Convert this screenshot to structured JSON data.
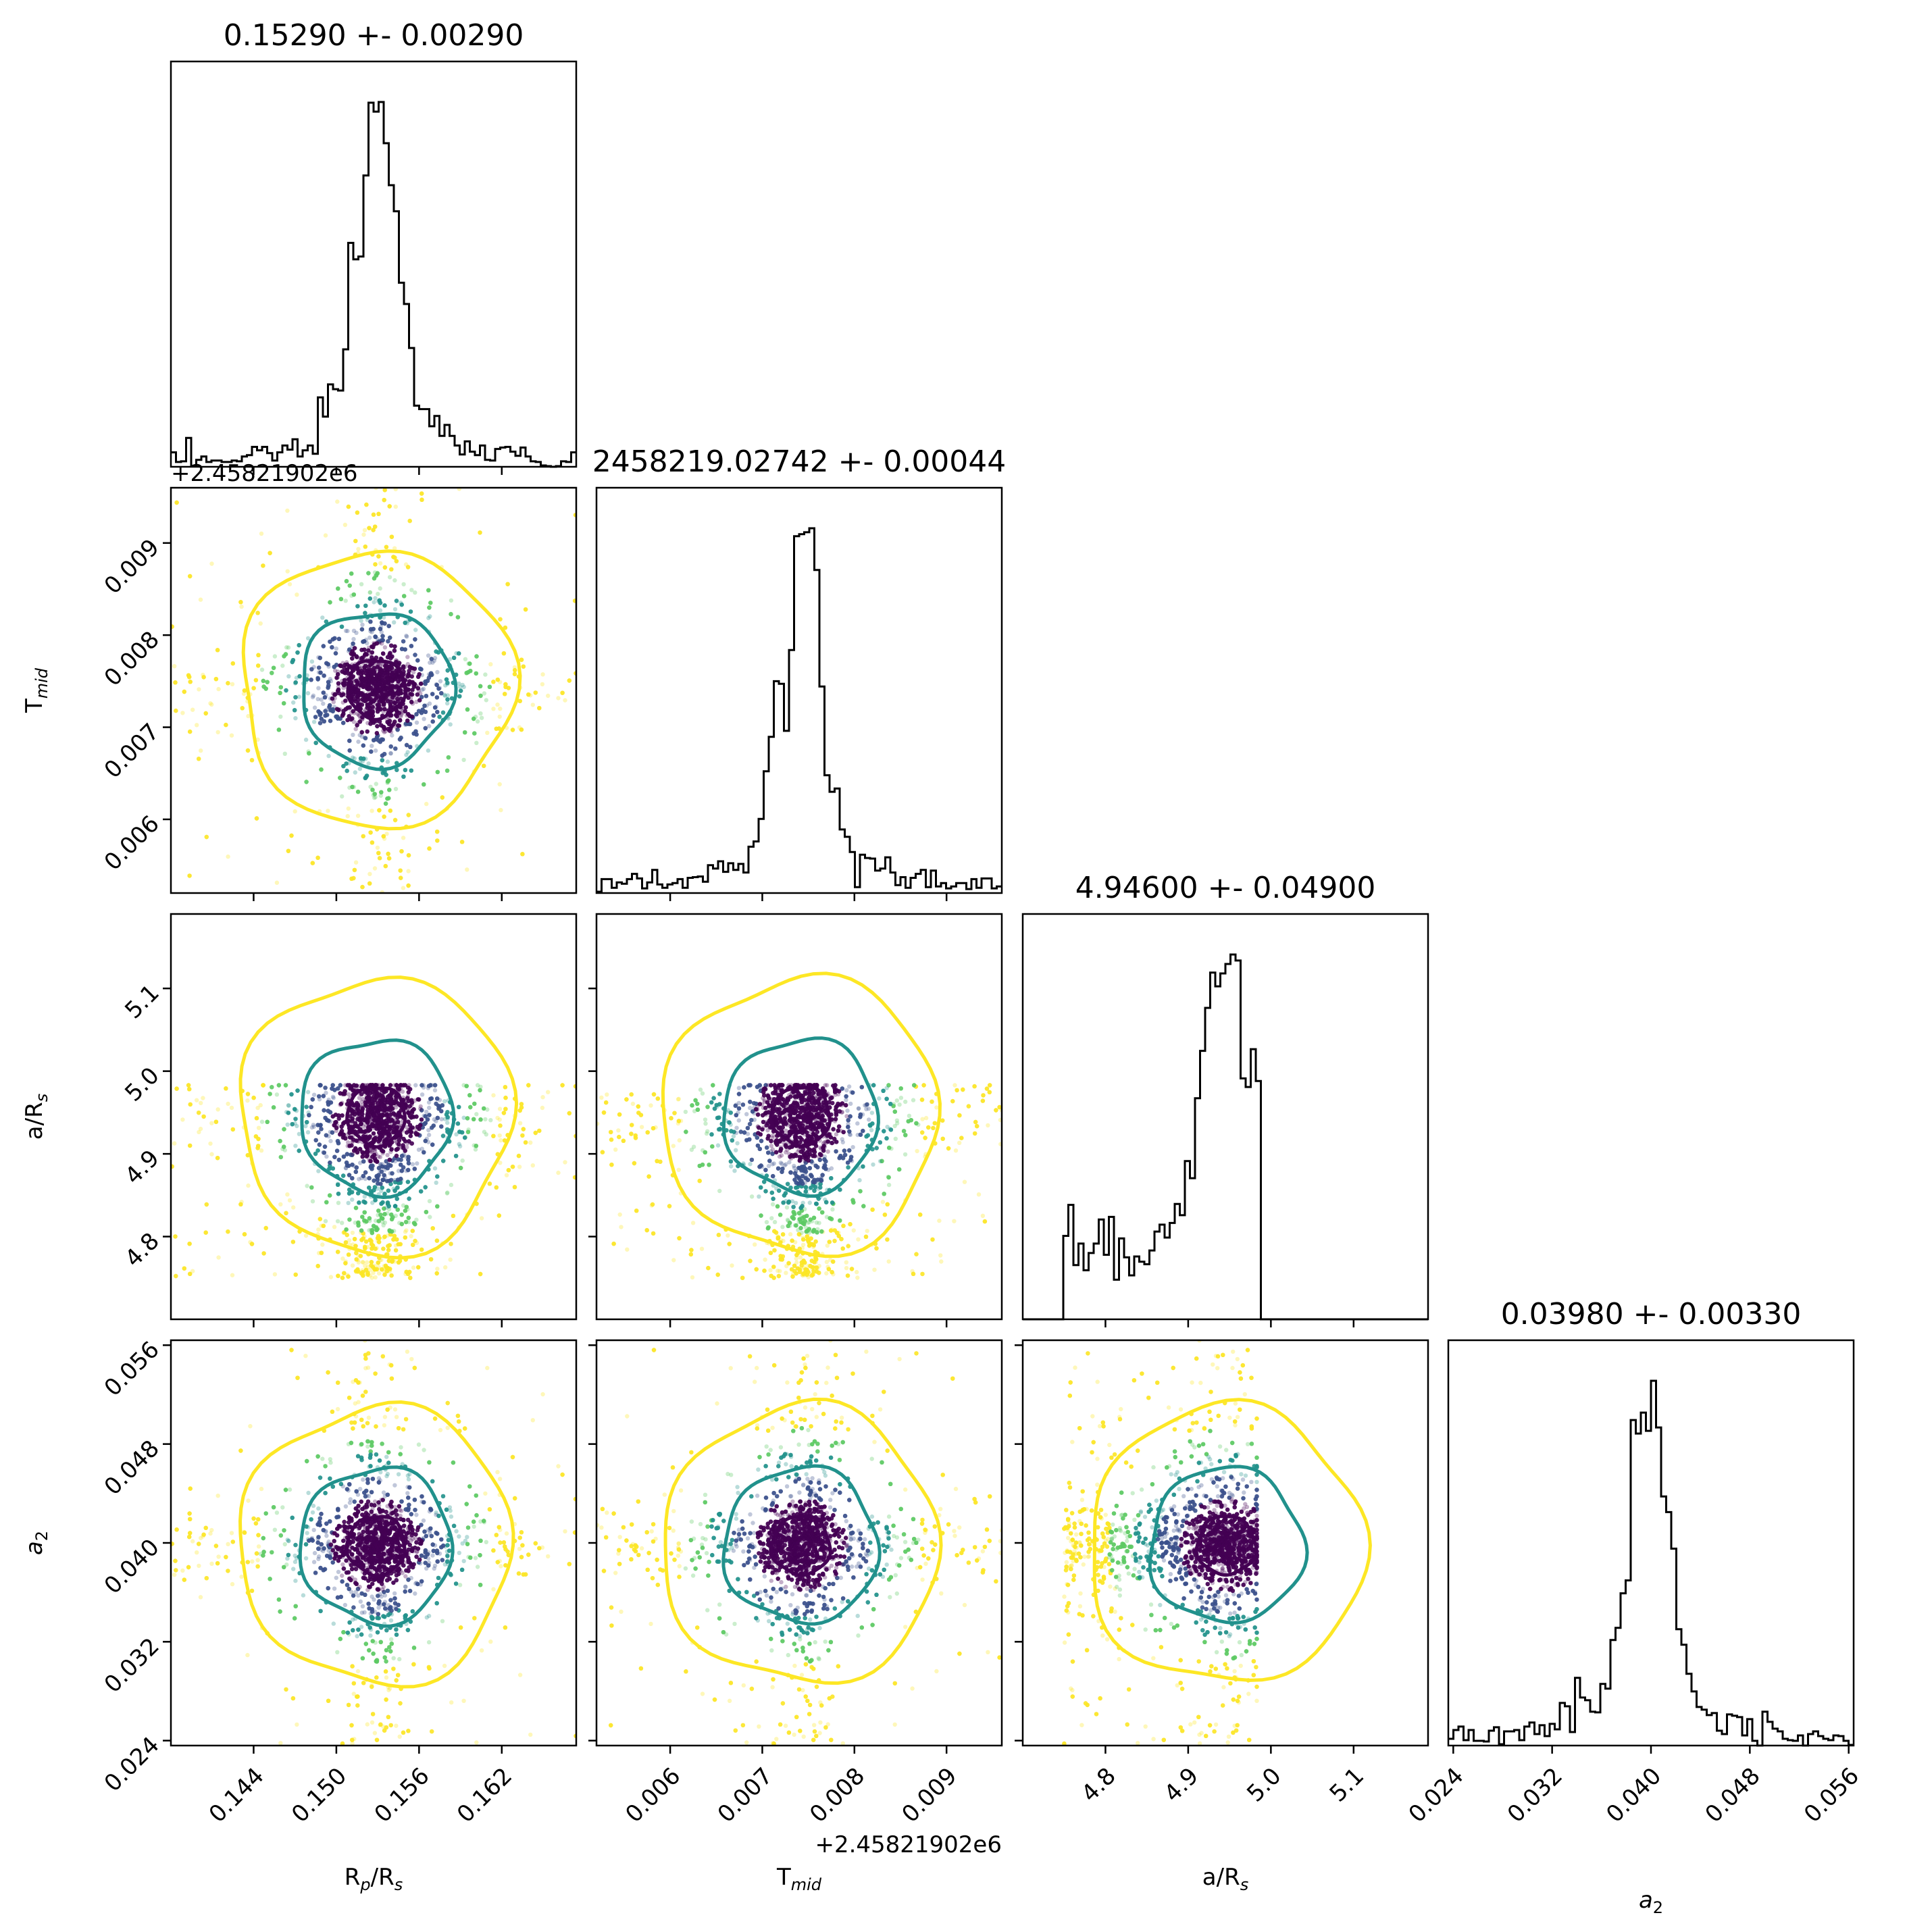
{
  "chart_data": {
    "type": "corner",
    "parameters": [
      {
        "key": "rp",
        "label": "R",
        "sub": "p",
        "label2": "/R",
        "sub2": "s",
        "ticks": [
          "0.144",
          "0.150",
          "0.156",
          "0.162"
        ],
        "tick_values": [
          0.144,
          0.15,
          0.156,
          0.162
        ],
        "range": [
          0.138,
          0.1674
        ]
      },
      {
        "key": "tmid",
        "label": "T",
        "sub": "mid",
        "label2": "",
        "sub2": "",
        "ticks": [
          "0.006",
          "0.007",
          "0.008",
          "0.009"
        ],
        "tick_values": [
          0.006,
          0.007,
          0.008,
          0.009
        ],
        "range": [
          0.0052,
          0.0096
        ],
        "offset": "+2.45821902e6"
      },
      {
        "key": "ars",
        "label": "a/R",
        "sub": "s",
        "label2": "",
        "sub2": "",
        "ticks": [
          "4.8",
          "4.9",
          "5.0",
          "5.1"
        ],
        "tick_values": [
          4.8,
          4.9,
          5.0,
          5.1
        ],
        "range": [
          4.7,
          5.19
        ]
      },
      {
        "key": "a2",
        "label": "a",
        "sub": "2",
        "label2": "",
        "sub2": "",
        "italic": true,
        "ticks": [
          "0.024",
          "0.032",
          "0.040",
          "0.048",
          "0.056"
        ],
        "tick_values": [
          0.024,
          0.032,
          0.04,
          0.048,
          0.056
        ],
        "range": [
          0.0236,
          0.0564
        ]
      }
    ],
    "titles": [
      "0.15290 +- 0.00290",
      "2458219.02742 +- 0.00044",
      "4.94600 +- 0.04900",
      "0.03980 +- 0.00330"
    ],
    "medians": [
      0.1529,
      0.00742,
      4.946,
      0.0398
    ],
    "sigmas": [
      0.0029,
      0.00044,
      0.049,
      0.0033
    ],
    "ars_support": [
      4.75,
      4.983
    ],
    "contour_colors": [
      "#440154",
      "#21918c",
      "#fde725"
    ],
    "point_colors": [
      "#440154",
      "#3b528b",
      "#21918c",
      "#5ec962",
      "#fde725"
    ]
  }
}
